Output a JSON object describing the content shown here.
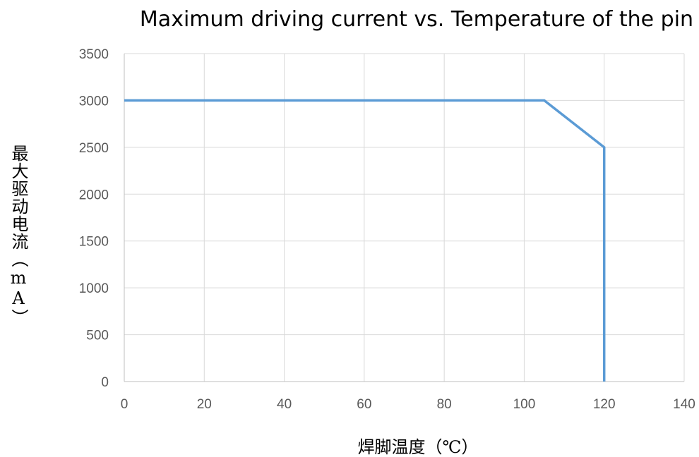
{
  "chart_data": {
    "type": "line",
    "title": "Maximum driving current vs. Temperature of the pin",
    "xlabel": "焊脚温度（℃）",
    "ylabel": "最大驱动电流（mA）",
    "x_ticks": [
      "0",
      "20",
      "40",
      "60",
      "80",
      "100",
      "120",
      "140"
    ],
    "y_ticks": [
      "0",
      "500",
      "1000",
      "1500",
      "2000",
      "2500",
      "3000",
      "3500"
    ],
    "xlim": [
      0,
      140
    ],
    "ylim": [
      0,
      3500
    ],
    "grid": true,
    "series": [
      {
        "x": [
          0,
          105,
          120,
          120
        ],
        "y": [
          3000,
          3000,
          2500,
          0
        ],
        "color": "#5b9bd5"
      }
    ]
  }
}
